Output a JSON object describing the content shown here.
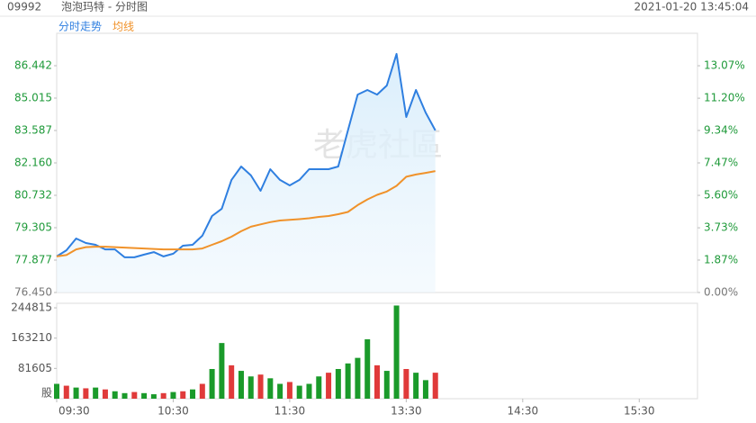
{
  "header": {
    "code": "09992",
    "title": "泡泡玛特 - 分时图",
    "datetime": "2021-01-20 13:45:04"
  },
  "watermark": "老虎社區",
  "chart_data": [
    {
      "type": "line",
      "x": [
        "09:30",
        "09:35",
        "09:40",
        "09:45",
        "09:50",
        "09:55",
        "10:00",
        "10:05",
        "10:10",
        "10:15",
        "10:20",
        "10:25",
        "10:30",
        "10:35",
        "10:40",
        "10:45",
        "10:50",
        "10:55",
        "11:00",
        "11:05",
        "11:10",
        "11:15",
        "11:20",
        "11:25",
        "11:30",
        "11:35",
        "11:40",
        "11:45",
        "11:50",
        "11:55",
        "12:00",
        "13:05",
        "13:10",
        "13:15",
        "13:20",
        "13:25",
        "13:30",
        "13:35",
        "13:40",
        "13:45"
      ],
      "series": [
        {
          "name": "分时走势",
          "color": "#2f7fe0",
          "values": [
            78.04,
            78.31,
            78.83,
            78.63,
            78.55,
            78.35,
            78.35,
            78.0,
            78.0,
            78.12,
            78.23,
            78.04,
            78.16,
            78.51,
            78.55,
            78.95,
            79.82,
            80.14,
            81.41,
            82.0,
            81.61,
            80.93,
            81.88,
            81.41,
            81.17,
            81.41,
            81.88,
            81.88,
            81.88,
            82.0,
            83.59,
            85.17,
            85.37,
            85.17,
            85.57,
            86.96,
            84.18,
            85.37,
            84.38,
            83.59
          ]
        },
        {
          "name": "均线",
          "color": "#f0922a",
          "values": [
            78.04,
            78.1,
            78.35,
            78.45,
            78.47,
            78.47,
            78.45,
            78.43,
            78.41,
            78.39,
            78.37,
            78.35,
            78.35,
            78.35,
            78.35,
            78.39,
            78.55,
            78.71,
            78.91,
            79.15,
            79.35,
            79.45,
            79.55,
            79.62,
            79.65,
            79.68,
            79.72,
            79.78,
            79.82,
            79.9,
            80.0,
            80.3,
            80.55,
            80.75,
            80.9,
            81.15,
            81.55,
            81.65,
            81.72,
            81.8
          ]
        }
      ],
      "xlim": [
        "09:30",
        "16:00"
      ],
      "xticks": [
        "09:30",
        "10:30",
        "11:30",
        "13:30",
        "14:30",
        "15:30"
      ],
      "ylim": [
        76.45,
        87.869
      ],
      "yticks": [
        {
          "value": 76.45,
          "label": "76.450"
        },
        77.877,
        79.305,
        80.732,
        {
          "value": 82.16,
          "label": "82.160"
        },
        83.587,
        85.015,
        86.442
      ],
      "y2lim": [
        0,
        14.94
      ],
      "y2ticks": [
        {
          "value": 0,
          "label": "0.00%"
        },
        {
          "value": 1.87,
          "label": "1.87%"
        },
        {
          "value": 3.73,
          "label": "3.73%"
        },
        {
          "value": 5.6,
          "label": "5.60%"
        },
        {
          "value": 7.47,
          "label": "7.47%"
        },
        {
          "value": 9.34,
          "label": "9.34%"
        },
        {
          "value": 11.2,
          "label": "11.20%"
        },
        {
          "value": 13.07,
          "label": "13.07%"
        }
      ]
    },
    {
      "type": "bar",
      "x": [
        "09:30",
        "09:35",
        "09:40",
        "09:45",
        "09:50",
        "09:55",
        "10:00",
        "10:05",
        "10:10",
        "10:15",
        "10:20",
        "10:25",
        "10:30",
        "10:35",
        "10:40",
        "10:45",
        "10:50",
        "10:55",
        "11:00",
        "11:05",
        "11:10",
        "11:15",
        "11:20",
        "11:25",
        "11:30",
        "11:35",
        "11:40",
        "11:45",
        "11:50",
        "11:55",
        "12:00",
        "13:05",
        "13:10",
        "13:15",
        "13:20",
        "13:25",
        "13:30",
        "13:35",
        "13:40",
        "13:45"
      ],
      "values": [
        40000,
        35000,
        30000,
        28000,
        30000,
        25000,
        20000,
        15000,
        18000,
        15000,
        12000,
        15000,
        18000,
        20000,
        25000,
        40000,
        80000,
        150000,
        90000,
        75000,
        60000,
        65000,
        55000,
        40000,
        45000,
        35000,
        40000,
        60000,
        70000,
        80000,
        95000,
        110000,
        160000,
        90000,
        75000,
        251000,
        80000,
        70000,
        50000,
        70000
      ],
      "colors": [
        "#1a9a2a",
        "#e03a3a",
        "#1a9a2a",
        "#e03a3a",
        "#1a9a2a",
        "#e03a3a",
        "#1a9a2a",
        "#1a9a2a",
        "#e03a3a",
        "#1a9a2a",
        "#1a9a2a",
        "#e03a3a",
        "#1a9a2a",
        "#e03a3a",
        "#1a9a2a",
        "#e03a3a",
        "#1a9a2a",
        "#1a9a2a",
        "#e03a3a",
        "#1a9a2a",
        "#1a9a2a",
        "#e03a3a",
        "#1a9a2a",
        "#1a9a2a",
        "#e03a3a",
        "#1a9a2a",
        "#1a9a2a",
        "#1a9a2a",
        "#e03a3a",
        "#1a9a2a",
        "#1a9a2a",
        "#1a9a2a",
        "#1a9a2a",
        "#e03a3a",
        "#1a9a2a",
        "#1a9a2a",
        "#e03a3a",
        "#1a9a2a",
        "#1a9a2a",
        "#e03a3a"
      ],
      "ylim": [
        0,
        257000
      ],
      "yticks": [
        {
          "value": 0,
          "label": "股"
        },
        81605,
        163210,
        244815
      ]
    }
  ]
}
